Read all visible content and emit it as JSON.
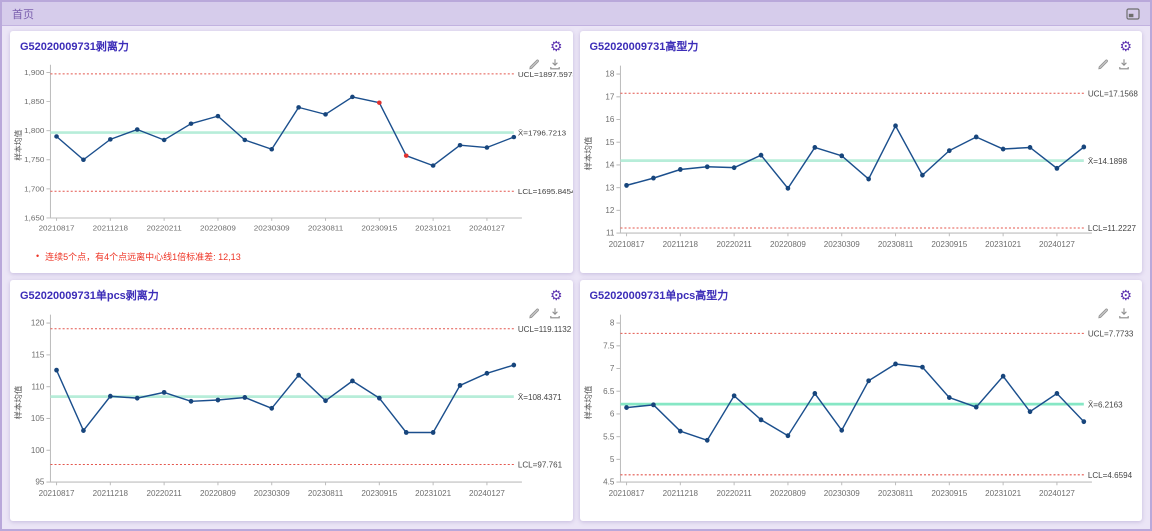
{
  "header": {
    "tab": "首页"
  },
  "ylabel": "样本均值",
  "colors": {
    "series": "#1b4f8d",
    "marker": "#17457c",
    "limit": "#e4574e",
    "red_point": "#e0312e",
    "limit_label": "#444444",
    "axis": "#bdbdbd",
    "tick_text": "#6e6e6e"
  },
  "chart_data": [
    {
      "type": "line",
      "title": "G52020009731剥离力",
      "ylabel": "样本均值",
      "ylim": [
        1650,
        1900
      ],
      "ytick_values": [
        1900,
        1850,
        1800,
        1750,
        1700,
        1650
      ],
      "ytick_labels": [
        "1,900",
        "1,850",
        "1,800",
        "1,750",
        "1,700",
        "1,650"
      ],
      "x_labels": [
        "20210817",
        "20211218",
        "20220211",
        "20220809",
        "20230309",
        "20230811",
        "20230915",
        "20231021",
        "20240127"
      ],
      "values": [
        1790,
        1750,
        1785,
        1802,
        1784,
        1812,
        1825,
        1784,
        1768,
        1840,
        1828,
        1858,
        1848,
        1757,
        1740,
        1775,
        1771,
        1789
      ],
      "red_points": [
        12,
        13
      ],
      "ucl": 1897.5973,
      "center": 1796.7213,
      "lcl": 1695.8454,
      "ucl_label": "UCL=1897.5973",
      "center_label": "X̄=1796.7213",
      "lcl_label": "LCL=1695.8454",
      "center_color": "#b7edd9",
      "note": "连续5个点，有4个点远离中心线1倍标准差: 12,13"
    },
    {
      "type": "line",
      "title": "G52020009731高型力",
      "ylabel": "样本均值",
      "ylim": [
        11,
        18
      ],
      "ytick_values": [
        18,
        17,
        16,
        15,
        14,
        13,
        12,
        11
      ],
      "ytick_labels": [
        "18",
        "17",
        "16",
        "15",
        "14",
        "13",
        "12",
        "11"
      ],
      "x_labels": [
        "20210817",
        "20211218",
        "20220211",
        "20220809",
        "20230309",
        "20230811",
        "20230915",
        "20231021",
        "20240127"
      ],
      "values": [
        13.1,
        13.42,
        13.8,
        13.92,
        13.88,
        14.43,
        12.97,
        14.77,
        14.4,
        13.38,
        15.72,
        13.55,
        14.63,
        15.23,
        14.7,
        14.77,
        13.85,
        14.79
      ],
      "red_points": [],
      "ucl": 17.1568,
      "center": 14.1898,
      "lcl": 11.2227,
      "ucl_label": "UCL=17.1568",
      "center_label": "X̄=14.1898",
      "lcl_label": "LCL=11.2227",
      "center_color": "#b7edd9",
      "note": ""
    },
    {
      "type": "line",
      "title": "G52020009731单pcs剥离力",
      "ylabel": "样本均值",
      "ylim": [
        95,
        120
      ],
      "ytick_values": [
        120,
        115,
        110,
        105,
        100,
        95
      ],
      "ytick_labels": [
        "120",
        "115",
        "110",
        "105",
        "100",
        "95"
      ],
      "x_labels": [
        "20210817",
        "20211218",
        "20220211",
        "20220809",
        "20230309",
        "20230811",
        "20230915",
        "20231021",
        "20240127"
      ],
      "values": [
        112.6,
        103.1,
        108.5,
        108.2,
        109.1,
        107.7,
        107.9,
        108.3,
        106.6,
        111.8,
        107.8,
        110.9,
        108.2,
        102.8,
        102.8,
        110.2,
        112.1,
        113.4
      ],
      "red_points": [],
      "ucl": 119.1132,
      "center": 108.4371,
      "lcl": 97.761,
      "ucl_label": "UCL=119.1132",
      "center_label": "X̄=108.4371",
      "lcl_label": "LCL=97.761",
      "center_color": "#b7edd9",
      "note": ""
    },
    {
      "type": "line",
      "title": "G52020009731单pcs高型力",
      "ylabel": "样本均值",
      "ylim": [
        4.5,
        8
      ],
      "ytick_values": [
        8,
        7.5,
        7,
        6.5,
        6,
        5.5,
        5,
        4.5
      ],
      "ytick_labels": [
        "8",
        "7.5",
        "7",
        "6.5",
        "6",
        "5.5",
        "5",
        "4.5"
      ],
      "x_labels": [
        "20210817",
        "20211218",
        "20220211",
        "20220809",
        "20230309",
        "20230811",
        "20230915",
        "20231021",
        "20240127"
      ],
      "values": [
        6.14,
        6.2,
        5.62,
        5.42,
        6.4,
        5.87,
        5.52,
        6.45,
        5.64,
        6.73,
        7.1,
        7.03,
        6.36,
        6.15,
        6.83,
        6.05,
        6.45,
        5.83
      ],
      "red_points": [],
      "ucl": 7.7733,
      "center": 6.2163,
      "lcl": 4.6594,
      "ucl_label": "UCL=7.7733",
      "center_label": "X̄=6.2163",
      "lcl_label": "LCL=4.6594",
      "center_color": "#86e7c5",
      "note": ""
    }
  ],
  "icons": {
    "gear": "⚙",
    "note_bullet": "•"
  }
}
